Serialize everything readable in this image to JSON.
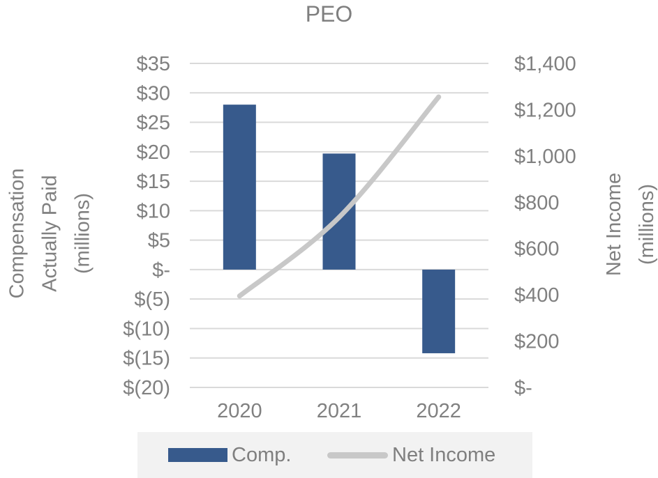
{
  "chart_data": {
    "type": "bar",
    "title": "PEO",
    "categories": [
      "2020",
      "2021",
      "2022"
    ],
    "series": [
      {
        "name": "Comp.",
        "type": "bar",
        "axis": "left",
        "color": "#375a8c",
        "values": [
          28.0,
          19.7,
          -14.2
        ]
      },
      {
        "name": "Net Income",
        "type": "line",
        "axis": "right",
        "color": "#c8c8c8",
        "values": [
          395,
          735,
          1255
        ]
      }
    ],
    "ylabel_left_lines": [
      "Compensation",
      "Actually Paid",
      "(millions)"
    ],
    "ylabel_right_lines": [
      "Net Income",
      "(millions)"
    ],
    "left_axis": {
      "ylim": [
        -20,
        35
      ],
      "ticks": [
        35,
        30,
        25,
        20,
        15,
        10,
        5,
        0,
        -5,
        -10,
        -15,
        -20
      ],
      "tick_labels": [
        "$35",
        "$30",
        "$25",
        "$20",
        "$15",
        "$10",
        "$5",
        "$-",
        "$(5)",
        "$(10)",
        "$(15)",
        "$(20)"
      ]
    },
    "right_axis": {
      "ylim": [
        0,
        1400
      ],
      "ticks": [
        1400,
        1200,
        1000,
        800,
        600,
        400,
        200,
        0
      ],
      "tick_labels": [
        "$1,400",
        "$1,200",
        "$1,000",
        "$800",
        "$600",
        "$400",
        "$200",
        "$-"
      ]
    },
    "grid": true,
    "legend_position": "bottom"
  }
}
